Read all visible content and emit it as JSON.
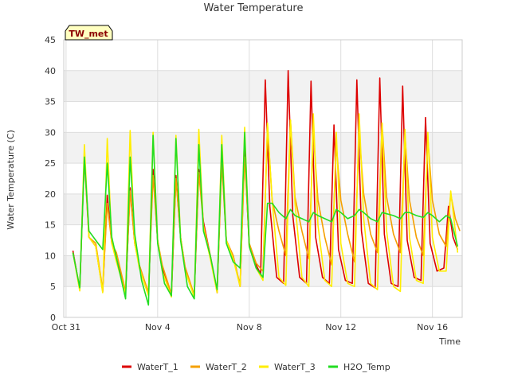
{
  "chart_data": {
    "type": "line",
    "title": "Water Temperature",
    "xlabel": "Time",
    "ylabel": "Water Temperature (C)",
    "site_label": "TW_met",
    "x_unit": "days since Oct 31 (fractional)",
    "xlim": [
      -0.1,
      17.3
    ],
    "ylim": [
      0,
      45
    ],
    "y_ticks": [
      0,
      5,
      10,
      15,
      20,
      25,
      30,
      35,
      40,
      45
    ],
    "x_ticks": [
      {
        "value": 0,
        "label": "Oct 31"
      },
      {
        "value": 4,
        "label": "Nov 4"
      },
      {
        "value": 8,
        "label": "Nov 8"
      },
      {
        "value": 12,
        "label": "Nov 12"
      },
      {
        "value": 16,
        "label": "Nov 16"
      }
    ],
    "grid": true,
    "background_bands": true,
    "legend_position": "bottom",
    "series": [
      {
        "name": "WaterT_1",
        "color": "#dd0000",
        "x": [
          0.3,
          0.6,
          0.8,
          1.0,
          1.3,
          1.6,
          1.8,
          2.0,
          2.2,
          2.6,
          2.8,
          3.0,
          3.2,
          3.6,
          3.8,
          4.0,
          4.2,
          4.6,
          4.8,
          5.0,
          5.2,
          5.6,
          5.8,
          6.0,
          6.3,
          6.6,
          6.8,
          7.0,
          7.3,
          7.6,
          7.8,
          8.0,
          8.3,
          8.5,
          8.7,
          8.9,
          9.2,
          9.5,
          9.7,
          9.9,
          10.2,
          10.5,
          10.7,
          10.9,
          11.2,
          11.5,
          11.7,
          11.9,
          12.2,
          12.5,
          12.7,
          12.9,
          13.2,
          13.5,
          13.7,
          13.9,
          14.2,
          14.5,
          14.7,
          14.9,
          15.2,
          15.5,
          15.7,
          15.9,
          16.2,
          16.5,
          16.7,
          16.9,
          17.1
        ],
        "y": [
          10.8,
          4.5,
          26.5,
          13.0,
          11.5,
          4.2,
          19.8,
          12.0,
          9.5,
          4.0,
          21.0,
          12.0,
          8.5,
          3.8,
          24.0,
          12.5,
          8.0,
          3.5,
          23.0,
          13.0,
          8.0,
          3.5,
          24.0,
          15.5,
          10.0,
          4.0,
          26.0,
          12.5,
          10.0,
          5.0,
          27.0,
          11.5,
          8.5,
          7.0,
          38.5,
          18.0,
          6.5,
          5.5,
          40.0,
          16.5,
          6.5,
          5.5,
          38.3,
          13.0,
          6.5,
          5.5,
          31.2,
          11.0,
          6.0,
          5.5,
          38.5,
          14.0,
          5.5,
          4.8,
          38.8,
          13.5,
          5.5,
          5.0,
          37.5,
          12.5,
          6.5,
          6.0,
          32.4,
          12.0,
          7.5,
          8.0,
          18.0,
          13.0,
          11.0
        ]
      },
      {
        "name": "WaterT_2",
        "color": "#f5a000",
        "x": [
          0.3,
          0.6,
          0.8,
          1.0,
          1.3,
          1.6,
          1.8,
          2.0,
          2.2,
          2.6,
          2.8,
          3.0,
          3.2,
          3.6,
          3.8,
          4.0,
          4.2,
          4.6,
          4.8,
          5.0,
          5.2,
          5.6,
          5.8,
          6.0,
          6.3,
          6.6,
          6.8,
          7.0,
          7.3,
          7.6,
          7.8,
          8.0,
          8.3,
          8.6,
          8.8,
          9.0,
          9.3,
          9.6,
          9.8,
          10.0,
          10.3,
          10.6,
          10.8,
          11.0,
          11.3,
          11.6,
          11.8,
          12.0,
          12.3,
          12.6,
          12.8,
          13.0,
          13.3,
          13.6,
          13.8,
          14.0,
          14.3,
          14.6,
          14.8,
          15.0,
          15.3,
          15.6,
          15.8,
          16.0,
          16.3,
          16.6,
          16.8,
          17.0,
          17.2
        ],
        "y": [
          10.5,
          4.8,
          25.5,
          13.0,
          12.0,
          4.5,
          18.5,
          12.0,
          10.5,
          4.2,
          20.5,
          12.0,
          8.5,
          4.0,
          23.0,
          12.5,
          8.5,
          3.8,
          22.5,
          13.0,
          8.2,
          3.6,
          23.5,
          15.0,
          10.0,
          4.2,
          25.0,
          12.5,
          10.0,
          5.2,
          26.0,
          12.0,
          8.8,
          7.5,
          31.0,
          19.0,
          14.0,
          10.0,
          32.0,
          19.5,
          14.0,
          9.5,
          30.0,
          19.0,
          13.0,
          8.5,
          28.0,
          19.0,
          13.5,
          9.0,
          30.0,
          20.0,
          13.5,
          10.5,
          31.5,
          19.5,
          13.5,
          10.5,
          29.5,
          19.0,
          13.0,
          10.0,
          29.0,
          19.0,
          13.5,
          11.5,
          20.0,
          16.0,
          14.0
        ]
      },
      {
        "name": "WaterT_3",
        "color": "#ffee00",
        "x": [
          0.3,
          0.6,
          0.8,
          1.0,
          1.3,
          1.6,
          1.8,
          2.0,
          2.2,
          2.6,
          2.8,
          3.0,
          3.2,
          3.6,
          3.8,
          4.0,
          4.2,
          4.6,
          4.8,
          5.0,
          5.2,
          5.6,
          5.8,
          6.0,
          6.3,
          6.6,
          6.8,
          7.0,
          7.3,
          7.6,
          7.8,
          8.0,
          8.3,
          8.6,
          8.8,
          9.0,
          9.3,
          9.6,
          9.8,
          10.0,
          10.3,
          10.6,
          10.8,
          11.0,
          11.3,
          11.6,
          11.8,
          12.0,
          12.3,
          12.6,
          12.8,
          13.0,
          13.3,
          13.6,
          13.8,
          14.0,
          14.3,
          14.6,
          14.8,
          15.0,
          15.3,
          15.6,
          15.8,
          16.0,
          16.3,
          16.6,
          16.8,
          17.0,
          17.1
        ],
        "y": [
          10.5,
          4.3,
          28.0,
          13.0,
          11.5,
          4.0,
          29.0,
          12.0,
          9.0,
          3.8,
          30.3,
          12.0,
          8.0,
          3.5,
          30.0,
          12.5,
          7.5,
          3.3,
          29.5,
          13.0,
          7.5,
          3.3,
          30.5,
          14.5,
          9.5,
          4.0,
          29.5,
          12.5,
          9.5,
          5.0,
          30.8,
          11.5,
          8.0,
          6.0,
          31.5,
          19.0,
          6.5,
          5.2,
          32.0,
          18.5,
          6.5,
          5.0,
          33.0,
          15.0,
          6.0,
          5.0,
          30.0,
          12.0,
          5.5,
          5.0,
          33.0,
          16.0,
          5.5,
          4.5,
          31.5,
          14.0,
          5.0,
          4.2,
          30.5,
          13.0,
          6.0,
          5.5,
          30.0,
          13.0,
          7.5,
          7.5,
          20.5,
          14.0,
          10.5
        ]
      },
      {
        "name": "H2O_Temp",
        "color": "#22dd22",
        "x": [
          0.3,
          0.6,
          0.8,
          1.0,
          1.3,
          1.6,
          1.8,
          2.0,
          2.3,
          2.6,
          2.8,
          3.0,
          3.3,
          3.6,
          3.8,
          4.0,
          4.3,
          4.6,
          4.8,
          5.0,
          5.3,
          5.6,
          5.8,
          6.0,
          6.3,
          6.6,
          6.8,
          7.0,
          7.3,
          7.6,
          7.8,
          8.0,
          8.3,
          8.6,
          8.8,
          9.0,
          9.3,
          9.6,
          9.8,
          10.0,
          10.3,
          10.6,
          10.8,
          11.0,
          11.3,
          11.6,
          11.8,
          12.0,
          12.3,
          12.6,
          12.8,
          13.0,
          13.3,
          13.6,
          13.8,
          14.0,
          14.3,
          14.6,
          14.8,
          15.0,
          15.3,
          15.6,
          15.8,
          16.0,
          16.3,
          16.6,
          16.8,
          17.0,
          17.1
        ],
        "y": [
          10.5,
          4.8,
          26.0,
          14.0,
          12.5,
          11.0,
          25.0,
          13.0,
          8.0,
          3.0,
          26.0,
          13.5,
          6.0,
          2.0,
          29.5,
          12.0,
          5.5,
          3.5,
          29.0,
          12.5,
          5.0,
          3.0,
          28.0,
          14.0,
          10.0,
          4.5,
          28.0,
          12.0,
          9.0,
          8.0,
          30.0,
          11.5,
          8.0,
          6.5,
          18.5,
          18.5,
          17.0,
          16.0,
          17.5,
          16.5,
          16.0,
          15.5,
          17.0,
          16.5,
          16.0,
          15.5,
          17.5,
          17.0,
          16.0,
          16.5,
          17.5,
          17.0,
          16.0,
          15.5,
          17.0,
          16.8,
          16.5,
          16.0,
          17.0,
          17.0,
          16.5,
          16.2,
          17.0,
          16.5,
          15.5,
          16.5,
          16.0,
          13.0,
          11.5
        ]
      }
    ]
  }
}
